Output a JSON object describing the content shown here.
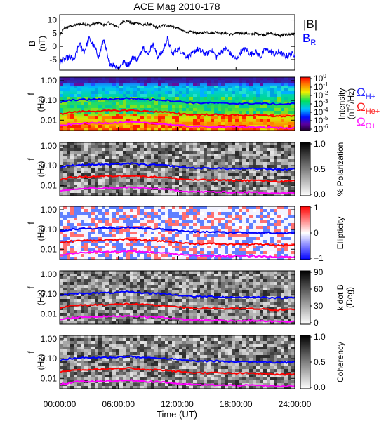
{
  "chart_data": {
    "type": "line",
    "title": "ACE Mag 2010-178",
    "xlabel": "Time (UT)",
    "xlim": [
      0,
      24
    ],
    "x_ticks": [
      "00:00:00",
      "06:00:00",
      "12:00:00",
      "18:00:00",
      "24:00:00"
    ],
    "x_tick_values": [
      0,
      6,
      12,
      18,
      24
    ],
    "line_panel": {
      "ylabel": "B",
      "yunit": "(nT)",
      "ylim": [
        -9,
        12
      ],
      "y_ticks": [
        "10",
        "5",
        "0",
        "-5"
      ],
      "y_tick_values": [
        10,
        5,
        0,
        -5
      ],
      "series": [
        {
          "name": "|B|",
          "color": "#000000",
          "x": [
            0,
            0.5,
            1,
            1.5,
            2,
            2.5,
            3,
            3.5,
            4,
            4.5,
            5,
            5.5,
            6,
            6.5,
            7,
            7.5,
            8,
            8.5,
            9,
            9.5,
            10,
            10.5,
            11,
            11.5,
            12,
            12.5,
            13,
            13.5,
            14,
            14.5,
            15,
            15.5,
            16,
            16.5,
            17,
            17.5,
            18,
            18.5,
            19,
            19.5,
            20,
            20.5,
            21,
            21.5,
            22,
            22.5,
            23,
            23.5,
            24
          ],
          "values": [
            4,
            7,
            7.5,
            8,
            8.5,
            8.5,
            8,
            8.5,
            9,
            8,
            9,
            8,
            7.5,
            9.5,
            9.5,
            8.5,
            9,
            8,
            8.5,
            8,
            7,
            8,
            8,
            7.5,
            7,
            6,
            5.5,
            5.5,
            5,
            5,
            5.5,
            5,
            5.5,
            5,
            5,
            4.5,
            5,
            5,
            5,
            4.5,
            5,
            4.5,
            4.5,
            5,
            4.5,
            4,
            4.5,
            4.5,
            4.5
          ]
        },
        {
          "name": "BR",
          "label_main": "B",
          "label_sub": "R",
          "color": "#0000ff",
          "x": [
            0,
            0.5,
            1,
            1.5,
            2,
            2.5,
            3,
            3.5,
            4,
            4.5,
            5,
            5.5,
            6,
            6.5,
            7,
            7.5,
            8,
            8.5,
            9,
            9.5,
            10,
            10.5,
            11,
            11.5,
            12,
            12.5,
            13,
            13.5,
            14,
            14.5,
            15,
            15.5,
            16,
            16.5,
            17,
            17.5,
            18,
            18.5,
            19,
            19.5,
            20,
            20.5,
            21,
            21.5,
            22,
            22.5,
            23,
            23.5,
            24
          ],
          "values": [
            -6,
            -5,
            -4,
            -5,
            1,
            -2,
            3,
            0,
            -4,
            3,
            -6,
            -7,
            -8,
            -6,
            -7,
            -4,
            -5,
            0,
            -3,
            1,
            -4,
            -2,
            3,
            -3,
            -1,
            -2,
            -4,
            -3,
            -1,
            -2,
            -3,
            -1,
            -4,
            -2,
            -1,
            -3,
            -5,
            -2,
            -1,
            -3,
            -2,
            -4,
            -1,
            -2,
            -3,
            -2,
            -4,
            -3,
            -3
          ]
        }
      ]
    },
    "spectral_panels": [
      {
        "type": "heatmap",
        "ylabel": "f",
        "yunit": "(Hz)",
        "ylog": true,
        "ylim": [
          0.003,
          1.5
        ],
        "y_ticks": [
          "1.00",
          "0.10",
          "0.01"
        ],
        "y_tick_values": [
          1,
          0.1,
          0.01
        ],
        "colorbar": "rainbow",
        "colorbar_ticks": [
          {
            "base": "10",
            "exp": "0"
          },
          {
            "base": "10",
            "exp": "-1"
          },
          {
            "base": "10",
            "exp": "-2"
          },
          {
            "base": "10",
            "exp": "-3"
          },
          {
            "base": "10",
            "exp": "-4"
          },
          {
            "base": "10",
            "exp": "-5"
          },
          {
            "base": "10",
            "exp": "-6"
          }
        ],
        "colorbar_label": "Intensity",
        "colorbar_unit_main": "(nT",
        "colorbar_unit_sup": "2",
        "colorbar_unit_tail": "/Hz)",
        "legend": [
          {
            "symbol": "Ω",
            "sub": "H+",
            "color": "#2a2aff"
          },
          {
            "symbol": "Ω",
            "sub": "He+",
            "color": "#ff2020"
          },
          {
            "symbol": "Ω",
            "sub": "O+",
            "color": "#ff20ff"
          }
        ]
      },
      {
        "type": "heatmap",
        "ylabel": "f",
        "yunit": "(Hz)",
        "ylog": true,
        "ylim": [
          0.003,
          1.5
        ],
        "y_ticks": [
          "1.00",
          "0.10",
          "0.01"
        ],
        "y_tick_values": [
          1,
          0.1,
          0.01
        ],
        "colorbar": "gray",
        "colorbar_ticks": [
          "1.0",
          "0.5",
          "0.0"
        ],
        "colorbar_label": "% Polarization"
      },
      {
        "type": "heatmap",
        "ylabel": "f",
        "yunit": "(Hz)",
        "ylog": true,
        "ylim": [
          0.003,
          1.5
        ],
        "y_ticks": [
          "1.00",
          "0.10",
          "0.01"
        ],
        "y_tick_values": [
          1,
          0.1,
          0.01
        ],
        "colorbar": "bluewhitered",
        "colorbar_ticks": [
          "1",
          "0",
          "−1"
        ],
        "colorbar_label": "Ellipticity"
      },
      {
        "type": "heatmap",
        "ylabel": "f",
        "yunit": "(Hz)",
        "ylog": true,
        "ylim": [
          0.003,
          1.5
        ],
        "y_ticks": [
          "1.00",
          "0.10",
          "0.01"
        ],
        "y_tick_values": [
          1,
          0.1,
          0.01
        ],
        "colorbar": "gray",
        "colorbar_ticks": [
          "90",
          "60",
          "30",
          "0"
        ],
        "colorbar_label": "k dot B",
        "colorbar_label2": "(Deg)"
      },
      {
        "type": "heatmap",
        "ylabel": "f",
        "yunit": "(Hz)",
        "ylog": true,
        "ylim": [
          0.003,
          1.5
        ],
        "y_ticks": [
          "1.00",
          "0.10",
          "0.01"
        ],
        "y_tick_values": [
          1,
          0.1,
          0.01
        ],
        "colorbar": "gray",
        "colorbar_ticks": [
          "1.0",
          "0.5",
          "0.0"
        ],
        "colorbar_label": "Coherency"
      }
    ],
    "gyrofrequency_lines": {
      "x": [
        0,
        1,
        2,
        3,
        4,
        5,
        6,
        7,
        8,
        9,
        10,
        11,
        12,
        13,
        14,
        15,
        16,
        17,
        18,
        19,
        20,
        21,
        22,
        23,
        24
      ],
      "H+": [
        0.08,
        0.1,
        0.11,
        0.11,
        0.115,
        0.115,
        0.12,
        0.13,
        0.12,
        0.11,
        0.11,
        0.1,
        0.09,
        0.08,
        0.075,
        0.075,
        0.075,
        0.07,
        0.07,
        0.07,
        0.07,
        0.07,
        0.065,
        0.065,
        0.07
      ],
      "He+": [
        0.02,
        0.025,
        0.027,
        0.028,
        0.029,
        0.03,
        0.03,
        0.032,
        0.03,
        0.028,
        0.027,
        0.025,
        0.022,
        0.02,
        0.019,
        0.019,
        0.019,
        0.018,
        0.018,
        0.018,
        0.018,
        0.017,
        0.016,
        0.016,
        0.017
      ],
      "O+": [
        0.005,
        0.006,
        0.0068,
        0.007,
        0.0072,
        0.0073,
        0.0075,
        0.008,
        0.0075,
        0.007,
        0.0068,
        0.0062,
        0.0055,
        0.005,
        0.0048,
        0.0047,
        0.0047,
        0.0045,
        0.0045,
        0.0045,
        0.0045,
        0.0043,
        0.0041,
        0.004,
        0.0042
      ]
    }
  }
}
